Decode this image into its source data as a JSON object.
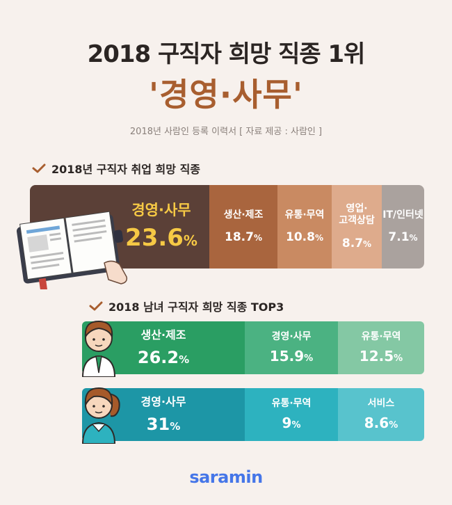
{
  "header": {
    "title": "2018 구직자 희망 직종 1위",
    "headline": "'경영·사무'",
    "source": "2018년 사람인 등록 이력서  [ 자료 제공 : 사람인 ]"
  },
  "section1": {
    "heading": "2018년 구직자 취업 희망 직종"
  },
  "section2": {
    "heading": "2018 남녀 구직자 희망 직종 TOP3"
  },
  "colors": {
    "main": [
      "#5b4037",
      "#a9653e",
      "#c98a62",
      "#deab8c",
      "#aaa29e"
    ],
    "male": [
      "#2a9e63",
      "#4bb282",
      "#84c8a4"
    ],
    "female": [
      "#1d96a6",
      "#2db2bf",
      "#58c3cd"
    ],
    "accent": "#f6c945",
    "logo": "#4576e8"
  },
  "icons": {
    "book": "open-book-icon",
    "male": "male-avatar-icon",
    "female": "female-avatar-icon",
    "check": "checkmark-icon"
  },
  "chart_data": [
    {
      "type": "bar",
      "title": "2018년 구직자 취업 희망 직종",
      "categories": [
        "경영·사무",
        "생산·제조",
        "유통·무역",
        "영업·고객상담",
        "IT/인터넷"
      ],
      "labels": [
        "경영·사무",
        "생산·제조",
        "유통·무역",
        "영업·\n고객상담",
        "IT/인터넷"
      ],
      "values": [
        23.6,
        18.7,
        10.8,
        8.7,
        7.1
      ],
      "display": [
        "23.6",
        "18.7",
        "10.8",
        "8.7",
        "7.1"
      ],
      "unit": "%"
    },
    {
      "type": "bar",
      "title": "2018 남녀 구직자 희망 직종 TOP3",
      "series": [
        {
          "categories": [
            "생산·제조",
            "경영·사무",
            "유통·무역"
          ],
          "values": [
            26.2,
            15.9,
            12.5
          ],
          "display": [
            "26.2",
            "15.9",
            "12.5"
          ]
        },
        {
          "categories": [
            "경영·사무",
            "유통·무역",
            "서비스"
          ],
          "values": [
            31,
            9,
            8.6
          ],
          "display": [
            "31",
            "9",
            "8.6"
          ]
        }
      ],
      "unit": "%"
    }
  ],
  "footer": {
    "logo": "saramin"
  }
}
